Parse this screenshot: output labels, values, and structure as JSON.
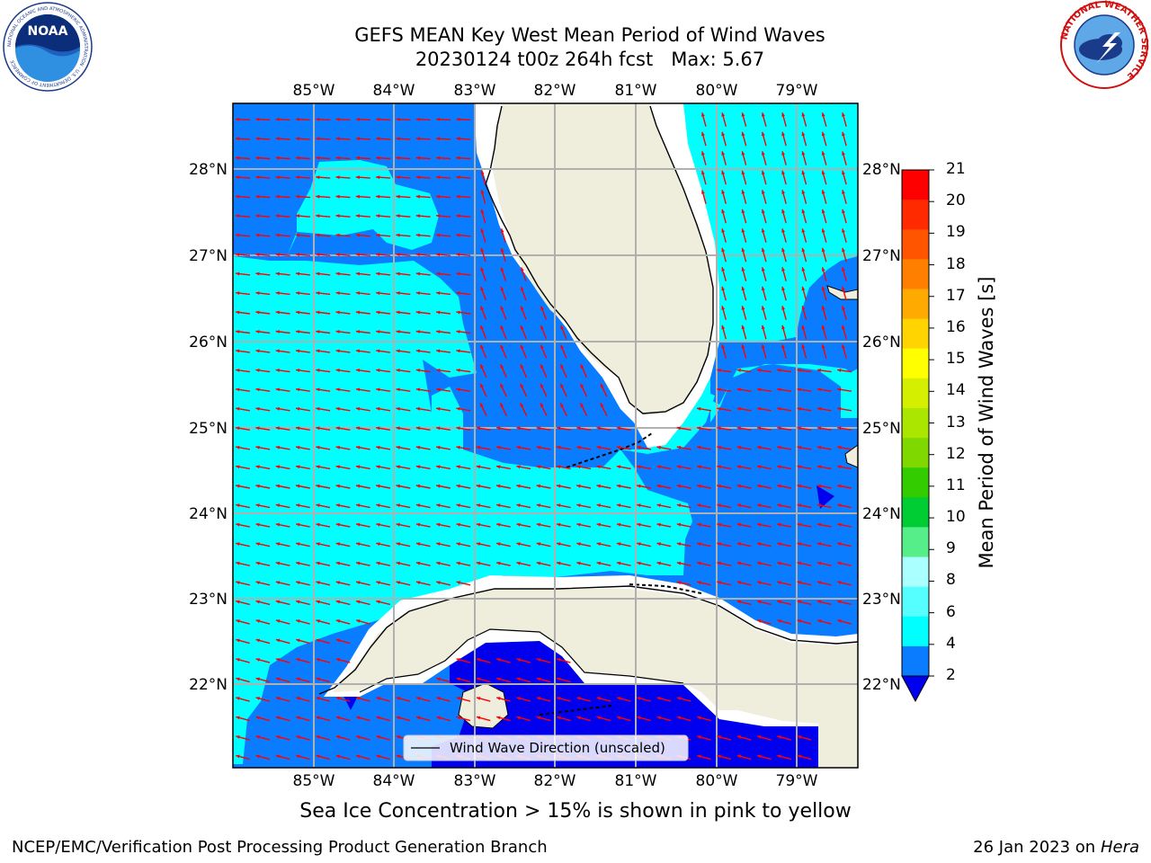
{
  "title": {
    "line1": "GEFS MEAN Key West Mean Period of Wind Waves",
    "line2": "20230124 t00z 264h fcst   Max: 5.67"
  },
  "map": {
    "lon_labels": [
      "85°W",
      "84°W",
      "83°W",
      "82°W",
      "81°W",
      "80°W",
      "79°W"
    ],
    "lat_labels": [
      "28°N",
      "27°N",
      "26°N",
      "25°N",
      "24°N",
      "23°N",
      "22°N"
    ],
    "legend_label": "Wind Wave Direction (unscaled)",
    "colors": {
      "level_2_4": "#0a7cff",
      "level_4_6": "#00ffff",
      "below_2": "#0000ee",
      "land": "#efeedd",
      "arrow": "#ff0000",
      "grid": "#b0b0b0"
    }
  },
  "colorbar": {
    "label": "Mean Period of Wind Waves [s]",
    "ticks": [
      "21",
      "20",
      "19",
      "18",
      "17",
      "16",
      "15",
      "14",
      "13",
      "12",
      "11",
      "10",
      "9",
      "8",
      "6",
      "4",
      "2"
    ],
    "colors": [
      "#ff0000",
      "#ff2a00",
      "#ff5500",
      "#ff7f00",
      "#ffaa00",
      "#ffd400",
      "#ffff00",
      "#d4f000",
      "#aae600",
      "#7fd900",
      "#33cc00",
      "#00cc33",
      "#55ee88",
      "#aaffff",
      "#55ffff",
      "#00ffff",
      "#0a7cff"
    ],
    "under_color": "#0000ee"
  },
  "footer": {
    "sea_ice_note": "Sea Ice Concentration > 15% is shown in pink to yellow",
    "credit_left": "NCEP/EMC/Verification Post Processing Product Generation Branch",
    "credit_right_date": "26 Jan 2023 on ",
    "credit_right_host": "Hera"
  },
  "logos": {
    "left": "NOAA",
    "left_ring_text": "NATIONAL OCEANIC AND ATMOSPHERIC ADMINISTRATION · U.S. DEPARTMENT OF COMMERCE",
    "right_ring_text": "NATIONAL WEATHER SERVICE"
  }
}
